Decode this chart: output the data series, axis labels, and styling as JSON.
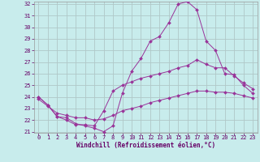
{
  "background_color": "#c8ecec",
  "grid_color": "#b0c8c8",
  "line_color": "#993399",
  "marker_color": "#993399",
  "xlabel": "Windchill (Refroidissement éolien,°C)",
  "xlabel_color": "#660066",
  "tick_color": "#660066",
  "ylim": [
    21,
    32
  ],
  "xlim": [
    -0.5,
    23.5
  ],
  "yticks": [
    21,
    22,
    23,
    24,
    25,
    26,
    27,
    28,
    29,
    30,
    31,
    32
  ],
  "xticks": [
    0,
    1,
    2,
    3,
    4,
    5,
    6,
    7,
    8,
    9,
    10,
    11,
    12,
    13,
    14,
    15,
    16,
    17,
    18,
    19,
    20,
    21,
    22,
    23
  ],
  "series": [
    {
      "x": [
        0,
        1,
        2,
        3,
        4,
        5,
        6,
        7,
        8,
        9,
        10,
        11,
        12,
        13,
        14,
        15,
        16,
        17,
        18,
        19,
        20,
        21,
        22,
        23
      ],
      "y": [
        24.0,
        23.3,
        22.3,
        22.2,
        21.7,
        21.5,
        21.3,
        21.0,
        21.5,
        24.3,
        26.2,
        27.3,
        28.8,
        29.2,
        30.4,
        32.0,
        32.2,
        31.5,
        28.8,
        28.0,
        26.0,
        25.9,
        25.0,
        24.3
      ]
    },
    {
      "x": [
        0,
        1,
        2,
        3,
        4,
        5,
        6,
        7,
        8,
        9,
        10,
        11,
        12,
        13,
        14,
        15,
        16,
        17,
        18,
        19,
        20,
        21,
        22,
        23
      ],
      "y": [
        24.0,
        23.3,
        22.3,
        22.0,
        21.6,
        21.6,
        21.5,
        22.8,
        24.5,
        25.0,
        25.3,
        25.6,
        25.8,
        26.0,
        26.2,
        26.5,
        26.7,
        27.2,
        26.8,
        26.5,
        26.5,
        25.8,
        25.2,
        24.7
      ]
    },
    {
      "x": [
        0,
        1,
        2,
        3,
        4,
        5,
        6,
        7,
        8,
        9,
        10,
        11,
        12,
        13,
        14,
        15,
        16,
        17,
        18,
        19,
        20,
        21,
        22,
        23
      ],
      "y": [
        23.8,
        23.2,
        22.6,
        22.4,
        22.2,
        22.2,
        22.0,
        22.1,
        22.4,
        22.8,
        23.0,
        23.2,
        23.5,
        23.7,
        23.9,
        24.1,
        24.3,
        24.5,
        24.5,
        24.4,
        24.4,
        24.3,
        24.1,
        23.9
      ]
    }
  ]
}
